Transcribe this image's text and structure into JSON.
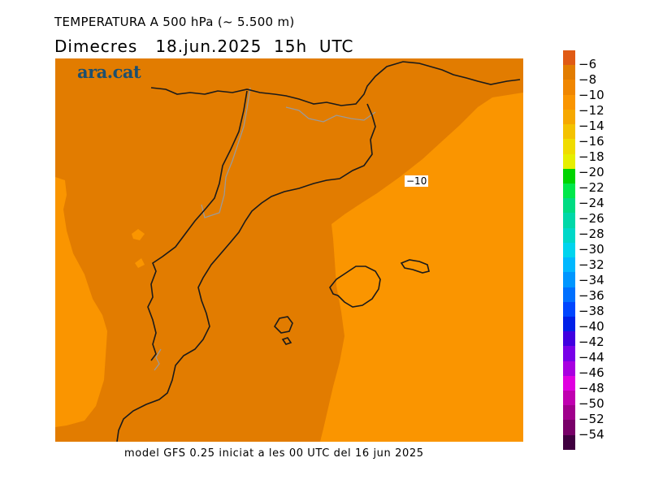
{
  "header": {
    "title": "TEMPERATURA A 500 hPa (~ 5.500 m)",
    "subtitle": "Dimecres   18.jun.2025  15h  UTC"
  },
  "map": {
    "logo": "ara.cat",
    "contour_label": "−10",
    "colors": {
      "dark_orange": "#e27c00",
      "light_orange": "#fa9500",
      "coast": "#1a1a1a",
      "border": "#9a9a9a"
    }
  },
  "footer": {
    "text": "model GFS 0.25 iniciat a les 00 UTC del 16 jun 2025"
  },
  "colorbar": {
    "unit_labels": [
      "−6",
      "−8",
      "−10",
      "−12",
      "−14",
      "−16",
      "−18",
      "−20",
      "−22",
      "−24",
      "−26",
      "−28",
      "−30",
      "−32",
      "−34",
      "−36",
      "−38",
      "−40",
      "−42",
      "−44",
      "−46",
      "−48",
      "−50",
      "−52",
      "−54"
    ],
    "colors": [
      "#e05a14",
      "#e27c00",
      "#f08600",
      "#fa9500",
      "#f6a800",
      "#f4c200",
      "#f0dc00",
      "#e6ef00",
      "#00d400",
      "#00e84a",
      "#00dc82",
      "#00d8a8",
      "#00d8c8",
      "#00d4ee",
      "#00b8ff",
      "#0096ff",
      "#0070ff",
      "#0046ff",
      "#0020e8",
      "#4000e0",
      "#7800e8",
      "#a800e0",
      "#e000e0",
      "#c000b0",
      "#a0008c",
      "#780068",
      "#400040"
    ]
  }
}
